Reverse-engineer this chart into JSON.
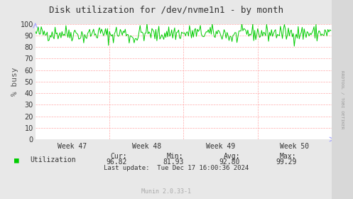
{
  "title": "Disk utilization for /dev/nvme1n1 - by month",
  "ylabel": "% busy",
  "ylim": [
    0,
    100
  ],
  "yticks": [
    0,
    10,
    20,
    30,
    40,
    50,
    60,
    70,
    80,
    90,
    100
  ],
  "line_color": "#00cc00",
  "line_width": 0.7,
  "bg_color": "#e8e8e8",
  "plot_bg_color": "#ffffff",
  "grid_h_color": "#ffaaaa",
  "grid_v_color": "#ffaaaa",
  "week_labels": [
    "Week 47",
    "Week 48",
    "Week 49",
    "Week 50"
  ],
  "legend_label": "Utilization",
  "legend_color": "#00cc00",
  "cur_label": "Cur:",
  "cur_val": "96.82",
  "min_label": "Min:",
  "min_val": "81.93",
  "avg_label": "Avg:",
  "avg_val": "92.80",
  "max_label": "Max:",
  "max_val": "99.29",
  "last_update": "Last update:  Tue Dec 17 16:00:36 2024",
  "footer": "Munin 2.0.33-1",
  "rrdtool_label": "RRDTOOL / TOBI OETIKER",
  "seed": 42,
  "n_points": 300,
  "base_value": 92.0,
  "noise_amplitude": 3.5,
  "title_color": "#333333",
  "tick_color": "#333333",
  "label_color": "#555555",
  "footer_color": "#aaaaaa",
  "watermark_color": "#cccccc",
  "arrow_color": "#aaaaff"
}
